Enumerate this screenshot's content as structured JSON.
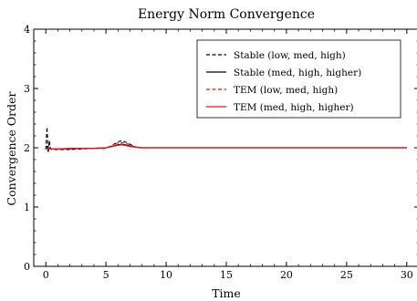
{
  "chart_data": {
    "type": "line",
    "title": "Energy Norm Convergence",
    "xlabel": "Time",
    "ylabel": "Convergence Order",
    "xlim": [
      -1,
      31
    ],
    "ylim": [
      0,
      4
    ],
    "xticks": [
      0,
      5,
      10,
      15,
      20,
      25,
      30
    ],
    "yticks": [
      0,
      1,
      2,
      3,
      4
    ],
    "grid": false,
    "legend_position": "top-right",
    "series": [
      {
        "name": "Stable (low, med, high)",
        "color": "#000000",
        "dashed": true,
        "x": [
          0,
          0.1,
          0.2,
          0.3,
          0.4,
          0.5,
          1,
          2,
          3,
          4,
          5,
          5.5,
          6,
          6.3,
          6.6,
          7,
          7.5,
          8,
          10,
          15,
          20,
          25,
          30
        ],
        "y": [
          1.97,
          2.35,
          1.93,
          2.12,
          1.98,
          1.97,
          1.97,
          1.97,
          1.98,
          1.99,
          1.99,
          2.04,
          2.1,
          2.12,
          2.1,
          2.06,
          2.01,
          2.0,
          2.0,
          2.0,
          2.0,
          2.0,
          2.0
        ]
      },
      {
        "name": "Stable (med, high, higher)",
        "color": "#000000",
        "dashed": false,
        "x": [
          0,
          0.1,
          0.2,
          0.3,
          0.4,
          0.5,
          1,
          2,
          3,
          4,
          5,
          5.5,
          6,
          6.3,
          6.6,
          7,
          7.5,
          8,
          10,
          15,
          20,
          25,
          30
        ],
        "y": [
          1.98,
          2.02,
          1.95,
          2.0,
          1.98,
          1.98,
          1.98,
          1.98,
          1.99,
          1.99,
          2.0,
          2.02,
          2.05,
          2.06,
          2.05,
          2.03,
          2.01,
          2.0,
          2.0,
          2.0,
          2.0,
          2.0,
          2.0
        ]
      },
      {
        "name": "TEM (low, med, high)",
        "color": "#e8141c",
        "dashed": true,
        "x": [
          0,
          0.1,
          0.2,
          0.3,
          0.5,
          1,
          2,
          3,
          4,
          5,
          5.5,
          6,
          6.3,
          6.6,
          7,
          7.5,
          8,
          10,
          15,
          20,
          25,
          30
        ],
        "y": [
          1.98,
          2.0,
          1.98,
          1.99,
          1.98,
          1.98,
          1.98,
          1.99,
          1.99,
          2.0,
          2.03,
          2.08,
          2.09,
          2.08,
          2.05,
          2.01,
          2.0,
          2.0,
          2.0,
          2.0,
          2.0,
          2.0
        ]
      },
      {
        "name": "TEM (med, high, higher)",
        "color": "#e8141c",
        "dashed": false,
        "x": [
          0,
          0.1,
          0.2,
          0.3,
          0.5,
          1,
          2,
          3,
          4,
          5,
          5.5,
          6,
          6.3,
          6.6,
          7,
          7.5,
          8,
          10,
          15,
          20,
          25,
          30
        ],
        "y": [
          1.98,
          1.99,
          1.98,
          1.99,
          1.98,
          1.98,
          1.99,
          1.99,
          1.99,
          2.0,
          2.02,
          2.04,
          2.05,
          2.04,
          2.02,
          2.01,
          2.0,
          2.0,
          2.0,
          2.0,
          2.0,
          2.0
        ]
      }
    ]
  }
}
